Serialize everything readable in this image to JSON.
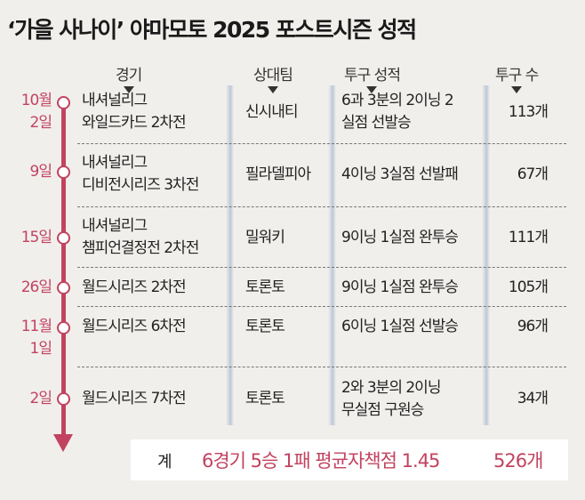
{
  "title": "‘가을 사나이’ 야마모토 2025 포스트시즌 성적",
  "headers": {
    "game": "경기",
    "opponent": "상대팀",
    "pitching": "투구 성적",
    "pitches": "투구 수"
  },
  "rows": [
    {
      "date_line1": "10월",
      "date_line2": "2일",
      "game_line1": "내셔널리그",
      "game_line2": "와일드카드 2차전",
      "opponent": "신시내티",
      "pitching_line1": "6과 3분의 2이닝 2",
      "pitching_line2": "실점 선발승",
      "pitches": "113개"
    },
    {
      "date_line1": "9일",
      "date_line2": "",
      "game_line1": "내셔널리그",
      "game_line2": "디비전시리즈 3차전",
      "opponent": "필라델피아",
      "pitching_line1": "4이닝 3실점 선발패",
      "pitching_line2": "",
      "pitches": "67개"
    },
    {
      "date_line1": "15일",
      "date_line2": "",
      "game_line1": "내셔널리그",
      "game_line2": "챔피언결정전 2차전",
      "opponent": "밀워키",
      "pitching_line1": "9이닝 1실점 완투승",
      "pitching_line2": "",
      "pitches": "111개"
    },
    {
      "date_line1": "26일",
      "date_line2": "",
      "game_line1": "월드시리즈 2차전",
      "game_line2": "",
      "opponent": "토론토",
      "pitching_line1": "9이닝 1실점 완투승",
      "pitching_line2": "",
      "pitches": "105개"
    },
    {
      "date_line1": "11월",
      "date_line2": "1일",
      "game_line1": "월드시리즈 6차전",
      "game_line2": "",
      "opponent": "토론토",
      "pitching_line1": "6이닝 1실점 선발승",
      "pitching_line2": "",
      "pitches": "96개"
    },
    {
      "date_line1": "2일",
      "date_line2": "",
      "game_line1": "월드시리즈 7차전",
      "game_line2": "",
      "opponent": "토론토",
      "pitching_line1": "2와 3분의 2이닝",
      "pitching_line2": "무실점 구원승",
      "pitches": "34개"
    }
  ],
  "total": {
    "label": "계",
    "summary": "6경기 5승 1패 평균자책점 1.45",
    "pitches": "526개"
  },
  "colors": {
    "accent": "#c2435f",
    "background": "#f1efec",
    "column_bar": "#b9c7d4"
  }
}
